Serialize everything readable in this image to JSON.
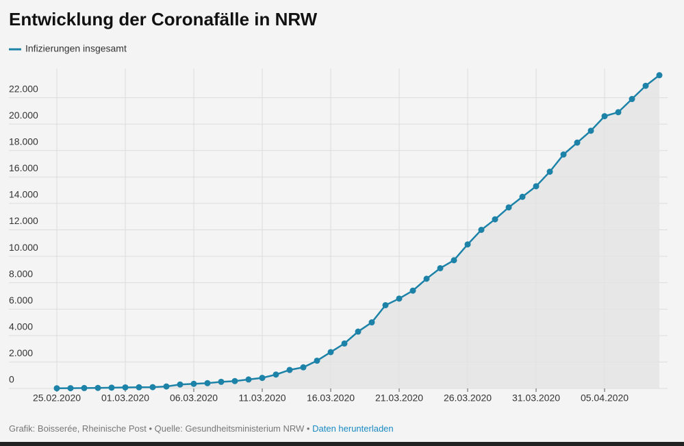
{
  "chart_data": {
    "type": "line",
    "title": "Entwicklung der Coronafälle in NRW",
    "x": [
      "25.02.2020",
      "26.02.2020",
      "27.02.2020",
      "28.02.2020",
      "29.02.2020",
      "01.03.2020",
      "02.03.2020",
      "03.03.2020",
      "04.03.2020",
      "05.03.2020",
      "06.03.2020",
      "07.03.2020",
      "08.03.2020",
      "09.03.2020",
      "10.03.2020",
      "11.03.2020",
      "12.03.2020",
      "13.03.2020",
      "14.03.2020",
      "15.03.2020",
      "16.03.2020",
      "17.03.2020",
      "18.03.2020",
      "19.03.2020",
      "20.03.2020",
      "21.03.2020",
      "22.03.2020",
      "23.03.2020",
      "24.03.2020",
      "25.03.2020",
      "26.03.2020",
      "27.03.2020",
      "28.03.2020",
      "29.03.2020",
      "30.03.2020",
      "31.03.2020",
      "01.04.2020",
      "02.04.2020",
      "03.04.2020",
      "04.04.2020",
      "05.04.2020",
      "06.04.2020",
      "07.04.2020",
      "08.04.2020",
      "09.04.2020"
    ],
    "series": [
      {
        "name": "Infizierungen insgesamt",
        "color": "#1c82a8",
        "values": [
          14,
          20,
          30,
          40,
          60,
          80,
          90,
          100,
          150,
          300,
          350,
          400,
          500,
          560,
          680,
          800,
          1050,
          1400,
          1600,
          2100,
          2750,
          3400,
          4300,
          5000,
          6300,
          6800,
          7400,
          8300,
          9100,
          9700,
          10900,
          12000,
          12800,
          13700,
          14500,
          15300,
          16400,
          17700,
          18600,
          19500,
          20600,
          20900,
          21900,
          22900,
          23700
        ]
      }
    ],
    "xticks": [
      "25.02.2020",
      "01.03.2020",
      "06.03.2020",
      "11.03.2020",
      "16.03.2020",
      "21.03.2020",
      "26.03.2020",
      "31.03.2020",
      "05.04.2020"
    ],
    "ylim": [
      0,
      24000
    ],
    "yticks": [
      0,
      {
        "value": 2000,
        "label": "2.000"
      },
      {
        "value": 4000,
        "label": "4.000"
      },
      {
        "value": 6000,
        "label": "6.000"
      },
      {
        "value": 8000,
        "label": "8.000"
      },
      {
        "value": 10000,
        "label": "10.000"
      },
      {
        "value": 12000,
        "label": "12.000"
      },
      {
        "value": 14000,
        "label": "14.000"
      },
      {
        "value": 16000,
        "label": "16.000"
      },
      {
        "value": 18000,
        "label": "18.000"
      },
      {
        "value": 20000,
        "label": "20.000"
      },
      {
        "value": 22000,
        "label": "22.000"
      }
    ],
    "grid": true,
    "footer": {
      "text": "Grafik: Boisserée, Rheinische Post • Quelle: Gesundheitsministerium NRW •",
      "link": "Daten herunterladen"
    }
  }
}
